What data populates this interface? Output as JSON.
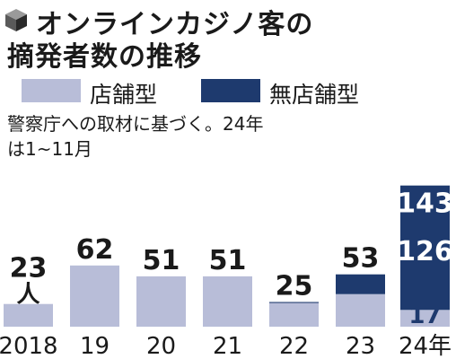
{
  "title_lines": [
    "オンラインカジノ客の",
    "摘発者数の推移"
  ],
  "legend": [
    {
      "label": "店舗型",
      "color": "#b8bdd8"
    },
    {
      "label": "無店舗型",
      "color": "#1e3a6e"
    }
  ],
  "note_lines": [
    "警察庁への取材に基づく。24年",
    "は1~11月"
  ],
  "chart_data": {
    "type": "bar",
    "stacked": true,
    "categories": [
      "2018",
      "19",
      "20",
      "21",
      "22",
      "23",
      "24年"
    ],
    "series": [
      {
        "name": "店舗型",
        "color": "#b8bdd8",
        "values": [
          23,
          62,
          51,
          51,
          24,
          33,
          17
        ]
      },
      {
        "name": "無店舗型",
        "color": "#1e3a6e",
        "values": [
          0,
          0,
          0,
          0,
          1,
          20,
          126
        ]
      }
    ],
    "totals": [
      23,
      62,
      51,
      51,
      25,
      53,
      143
    ],
    "total_labels": [
      "23",
      "62",
      "51",
      "51",
      "25",
      "53",
      "143"
    ],
    "first_unit": "人",
    "segment_labels": {
      "shop": "17",
      "online": "126"
    }
  }
}
